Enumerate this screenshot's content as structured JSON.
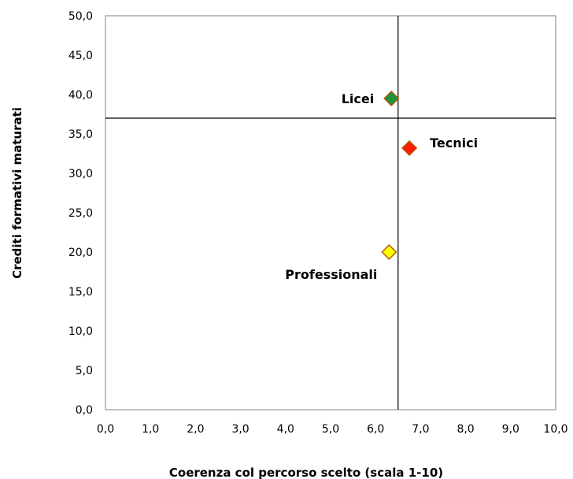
{
  "chart_data": {
    "type": "scatter",
    "title": "",
    "xlabel": "Coerenza col percorso scelto (scala 1-10)",
    "ylabel": "Crediti formativi maturati",
    "xlim": [
      0,
      10
    ],
    "ylim": [
      0,
      50
    ],
    "x_ticks": [
      "0,0",
      "1,0",
      "2,0",
      "3,0",
      "4,0",
      "5,0",
      "6,0",
      "7,0",
      "8,0",
      "9,0",
      "10,0"
    ],
    "y_ticks": [
      "0,0",
      "5,0",
      "10,0",
      "15,0",
      "20,0",
      "25,0",
      "30,0",
      "35,0",
      "40,0",
      "45,0",
      "50,0"
    ],
    "grid": false,
    "reference_lines": {
      "x": 6.5,
      "y": 37.0
    },
    "points": [
      {
        "label": "Licei",
        "x": 6.35,
        "y": 39.5,
        "color": "#1a9641",
        "label_side": "left"
      },
      {
        "label": "Tecnici",
        "x": 6.75,
        "y": 33.2,
        "color": "#ff1a00",
        "label_side": "right"
      },
      {
        "label": "Professionali",
        "x": 6.3,
        "y": 20.0,
        "color": "#ffff00",
        "label_side": "below-left"
      }
    ],
    "marker_edge_color": "#b35900"
  }
}
